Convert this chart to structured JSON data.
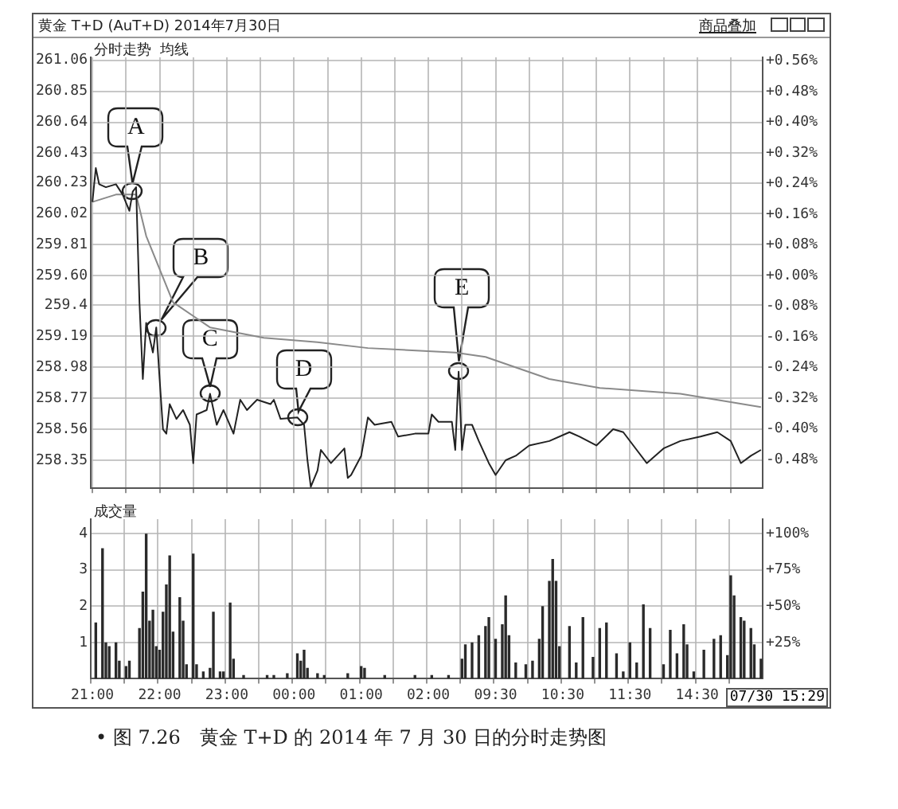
{
  "chart_data": [
    {
      "type": "line",
      "title": "黄金 T+D (AuT+D) 2014年7月30日",
      "subtitle": "分时走势  均线",
      "tick_labels": "y",
      "grid": true,
      "categories": [
        null,
        null,
        null,
        null,
        null,
        null,
        null,
        null,
        null,
        null,
        null,
        null,
        null,
        null,
        null,
        null,
        null,
        null,
        null,
        null,
        null,
        null,
        null,
        null,
        null,
        null,
        null,
        null,
        null,
        null,
        null,
        null,
        null,
        null,
        null,
        null,
        null,
        null,
        null,
        null,
        null,
        null,
        null,
        null,
        null,
        null,
        null,
        null,
        null,
        null,
        null,
        null,
        null,
        null,
        null,
        null,
        null,
        null,
        null,
        null,
        null,
        null,
        null,
        null,
        null,
        null,
        null,
        null,
        null,
        null,
        null,
        null,
        null,
        null,
        null,
        null,
        null,
        null,
        null,
        null,
        null,
        null,
        null,
        null,
        null,
        null,
        null,
        null,
        null,
        null,
        null,
        null,
        null,
        null,
        null,
        null,
        null,
        null,
        null,
        null,
        null,
        null,
        null,
        null,
        null,
        null,
        null,
        null,
        null,
        null,
        null,
        null,
        null,
        null,
        null,
        null,
        null,
        null,
        null,
        null,
        null,
        null,
        null,
        null,
        null,
        null,
        null,
        null,
        null,
        null,
        null,
        null,
        null,
        null,
        null,
        null,
        null,
        null,
        null,
        null,
        null,
        null,
        null,
        null,
        null,
        null,
        null,
        null,
        null,
        null,
        null,
        null,
        null,
        null,
        null,
        null,
        null,
        null,
        null,
        null,
        null,
        null,
        null,
        null,
        null,
        null,
        null,
        null,
        null,
        null,
        null,
        null,
        null,
        null,
        null,
        null,
        null,
        null,
        null,
        null,
        null,
        null,
        null,
        null,
        null,
        null,
        null,
        null,
        null,
        null,
        null,
        null,
        null,
        null,
        null,
        null,
        null,
        null,
        null,
        null
      ],
      "ylim": [
        258.16,
        261.08
      ],
      "yticks": [
        258.35,
        258.56,
        258.77,
        258.98,
        259.19,
        259.4,
        {
          "value": 259.6,
          "label": "259.60"
        },
        259.81,
        260.02,
        260.23,
        260.43,
        260.64,
        260.85,
        261.06
      ],
      "y2lim": [
        -0.555,
        0.57
      ],
      "y2ticks": [
        {
          "value": 0.56,
          "label": "+0.56%"
        },
        {
          "value": 0.48,
          "label": "+0.48%"
        },
        {
          "value": 0.4,
          "label": "+0.40%"
        },
        {
          "value": 0.32,
          "label": "+0.32%"
        },
        {
          "value": 0.24,
          "label": "+0.24%"
        },
        {
          "value": 0.16,
          "label": "+0.16%"
        },
        {
          "value": 0.08,
          "label": "+0.08%"
        },
        {
          "value": 0,
          "label": "+0.00%"
        },
        {
          "value": -0.08,
          "label": "-0.08%"
        },
        {
          "value": -0.16,
          "label": "-0.16%"
        },
        {
          "value": -0.24,
          "label": "-0.24%"
        },
        {
          "value": -0.32,
          "label": "-0.32%"
        },
        {
          "value": -0.4,
          "label": "-0.40%"
        },
        {
          "value": -0.48,
          "label": "-0.48%"
        }
      ],
      "series": [
        {
          "color": "#222222",
          "values": [
            260.1,
            260.33,
            260.22,
            null,
            260.2,
            null,
            null,
            260.22,
            null,
            260.15,
            null,
            260.04,
            260.17,
            260.2,
            259.42,
            258.9,
            259.28,
            259.18,
            259.08,
            259.25,
            258.9,
            258.56,
            258.53,
            258.73,
            null,
            258.63,
            null,
            258.69,
            null,
            258.59,
            258.33,
            258.66,
            null,
            null,
            258.69,
            258.8,
            null,
            258.59,
            null,
            258.69,
            null,
            null,
            258.53,
            null,
            258.76,
            null,
            258.69,
            null,
            null,
            258.76,
            null,
            null,
            null,
            258.73,
            258.76,
            null,
            258.63,
            null,
            null,
            null,
            null,
            258.64,
            null,
            258.59,
            258.35,
            258.17,
            null,
            258.28,
            258.42,
            null,
            null,
            258.33,
            null,
            null,
            null,
            258.43,
            258.23,
            258.25,
            null,
            null,
            258.38,
            null,
            258.64,
            null,
            258.59,
            null,
            null,
            null,
            null,
            258.61,
            null,
            258.51,
            null,
            null,
            null,
            null,
            258.53,
            null,
            null,
            null,
            258.53,
            258.66,
            null,
            258.61,
            null,
            null,
            null,
            258.61,
            258.42,
            258.95,
            258.42,
            258.59,
            null,
            258.59,
            null,
            258.48,
            null,
            null,
            258.33,
            null,
            258.25,
            null,
            null,
            258.35,
            null,
            null,
            258.38,
            null,
            null,
            null,
            258.45,
            null,
            null,
            null,
            null,
            null,
            258.48,
            null,
            null,
            null,
            null,
            null,
            258.54,
            null,
            null,
            258.51,
            null,
            null,
            null,
            null,
            258.45,
            null,
            null,
            null,
            null,
            258.56,
            null,
            null,
            258.54,
            null,
            null,
            null,
            258.42,
            null,
            null,
            258.33,
            null,
            null,
            null,
            null,
            258.43,
            null,
            null,
            null,
            null,
            258.48,
            null,
            null,
            null,
            null,
            null,
            258.51,
            null,
            null,
            null,
            null,
            258.54,
            null,
            null,
            null,
            258.48,
            null,
            null,
            258.33,
            null,
            null,
            258.38,
            null,
            null,
            258.42
          ]
        },
        {
          "color": "#8a8a8a",
          "values": [
            260.1,
            null,
            null,
            null,
            null,
            null,
            null,
            260.15,
            null,
            null,
            null,
            null,
            null,
            260.15,
            null,
            null,
            259.87,
            null,
            null,
            null,
            null,
            null,
            null,
            null,
            259.42,
            null,
            null,
            null,
            null,
            null,
            null,
            null,
            null,
            null,
            null,
            259.25,
            null,
            null,
            null,
            null,
            null,
            null,
            null,
            null,
            null,
            null,
            null,
            null,
            null,
            null,
            null,
            259.18,
            null,
            null,
            null,
            null,
            null,
            null,
            null,
            null,
            null,
            null,
            null,
            null,
            null,
            null,
            null,
            259.15,
            null,
            null,
            null,
            null,
            null,
            null,
            null,
            null,
            null,
            null,
            null,
            null,
            null,
            null,
            259.11,
            null,
            null,
            null,
            null,
            null,
            null,
            null,
            null,
            null,
            null,
            null,
            null,
            null,
            null,
            null,
            null,
            null,
            null,
            null,
            null,
            null,
            null,
            null,
            null,
            null,
            259.08,
            null,
            null,
            null,
            null,
            null,
            null,
            null,
            null,
            259.05,
            null,
            null,
            null,
            null,
            null,
            null,
            null,
            null,
            null,
            null,
            null,
            null,
            null,
            null,
            null,
            null,
            null,
            null,
            258.9,
            null,
            null,
            null,
            null,
            null,
            null,
            null,
            null,
            null,
            null,
            null,
            null,
            null,
            null,
            258.84,
            null,
            null,
            null,
            null,
            null,
            null,
            null,
            null,
            null,
            null,
            null,
            null,
            null,
            null,
            null,
            null,
            null,
            null,
            null,
            null,
            null,
            null,
            null,
            258.8,
            null,
            null,
            null,
            null,
            null,
            null,
            null,
            null,
            null,
            null,
            null,
            null,
            null,
            null,
            null,
            null,
            null,
            null,
            null,
            null,
            null,
            null,
            null,
            258.71
          ]
        }
      ],
      "annotations": [
        "商品叠加",
        {
          "text": "A",
          "y": 260.17
        },
        {
          "text": "B",
          "y": 259.25
        },
        {
          "text": "C",
          "y": 258.8
        },
        {
          "text": "D",
          "y": 258.64
        },
        {
          "text": "E",
          "y": 258.95
        }
      ]
    },
    {
      "type": "bar",
      "title": "成交量",
      "grid": true,
      "categories": [
        "21:00",
        null,
        null,
        null,
        null,
        null,
        null,
        null,
        null,
        null,
        null,
        null,
        null,
        null,
        null,
        null,
        null,
        null,
        null,
        null,
        "22:00",
        null,
        null,
        null,
        null,
        null,
        null,
        null,
        null,
        null,
        null,
        null,
        null,
        null,
        null,
        null,
        null,
        null,
        null,
        null,
        "23:00",
        null,
        null,
        null,
        null,
        null,
        null,
        null,
        null,
        null,
        null,
        null,
        null,
        null,
        null,
        null,
        null,
        null,
        null,
        null,
        "00:00",
        null,
        null,
        null,
        null,
        null,
        null,
        null,
        null,
        null,
        null,
        null,
        null,
        null,
        null,
        null,
        null,
        null,
        null,
        null,
        "01:00",
        null,
        null,
        null,
        null,
        null,
        null,
        null,
        null,
        null,
        null,
        null,
        null,
        null,
        null,
        null,
        null,
        null,
        null,
        null,
        "02:00",
        null,
        null,
        null,
        null,
        null,
        null,
        null,
        null,
        null,
        null,
        null,
        null,
        null,
        null,
        null,
        null,
        null,
        null,
        null,
        "09:30",
        null,
        null,
        null,
        null,
        null,
        null,
        null,
        null,
        null,
        null,
        null,
        null,
        null,
        null,
        null,
        null,
        null,
        null,
        null,
        "10:30",
        null,
        null,
        null,
        null,
        null,
        null,
        null,
        null,
        null,
        null,
        null,
        null,
        null,
        null,
        null,
        null,
        null,
        null,
        null,
        "11:30",
        null,
        null,
        null,
        null,
        null,
        null,
        null,
        null,
        null,
        null,
        null,
        null,
        null,
        null,
        null,
        null,
        null,
        null,
        null,
        "14:30",
        null,
        null,
        null,
        null,
        null,
        null,
        null,
        null,
        null,
        null,
        null,
        null,
        null,
        null,
        null,
        null,
        null,
        null,
        null
      ],
      "ylim": [
        0,
        4.4
      ],
      "yticks": [
        1,
        2,
        3,
        4
      ],
      "y2lim": [
        0,
        110
      ],
      "y2ticks": [
        {
          "value": 25,
          "label": "+25%"
        },
        {
          "value": 50,
          "label": "+50%"
        },
        {
          "value": 75,
          "label": "+75%"
        },
        {
          "value": 100,
          "label": "+100%"
        }
      ],
      "series": [
        {
          "color": "#2a2a2a",
          "values": [
            null,
            1.55,
            null,
            3.6,
            1.0,
            0.9,
            null,
            1.0,
            0.5,
            null,
            0.35,
            0.5,
            null,
            null,
            1.4,
            2.4,
            4.0,
            1.6,
            1.9,
            0.9,
            0.8,
            1.85,
            2.6,
            3.4,
            1.3,
            null,
            2.25,
            1.6,
            0.4,
            null,
            3.45,
            0.4,
            null,
            0.2,
            null,
            0.3,
            1.85,
            null,
            0.2,
            0.2,
            null,
            2.1,
            0.55,
            null,
            null,
            0.1,
            null,
            null,
            null,
            null,
            null,
            null,
            0.1,
            null,
            0.1,
            null,
            null,
            null,
            0.15,
            null,
            null,
            0.7,
            0.5,
            0.8,
            0.3,
            null,
            null,
            0.15,
            null,
            0.1,
            null,
            null,
            null,
            null,
            null,
            null,
            0.15,
            null,
            null,
            null,
            0.35,
            0.3,
            null,
            null,
            null,
            null,
            null,
            0.1,
            null,
            null,
            null,
            null,
            null,
            null,
            null,
            null,
            0.1,
            null,
            null,
            null,
            null,
            0.1,
            null,
            null,
            null,
            null,
            0.1,
            null,
            null,
            null,
            0.55,
            0.95,
            null,
            1.0,
            null,
            1.2,
            null,
            1.45,
            1.7,
            null,
            1.1,
            null,
            1.5,
            2.3,
            1.2,
            null,
            0.45,
            null,
            null,
            0.4,
            null,
            0.5,
            null,
            1.1,
            2.0,
            null,
            2.7,
            3.3,
            2.7,
            0.9,
            null,
            null,
            1.45,
            null,
            0.45,
            null,
            1.7,
            null,
            null,
            0.6,
            null,
            1.4,
            null,
            1.55,
            null,
            null,
            0.7,
            null,
            0.2,
            null,
            1.0,
            null,
            0.45,
            null,
            2.05,
            null,
            1.4,
            null,
            null,
            null,
            0.4,
            null,
            1.35,
            null,
            0.7,
            null,
            1.5,
            0.95,
            null,
            0.2,
            null,
            null,
            0.8,
            null,
            null,
            1.1,
            null,
            1.2,
            null,
            0.65,
            2.85,
            2.3,
            null,
            1.7,
            1.6,
            null,
            1.4,
            0.95,
            null,
            0.55
          ]
        }
      ],
      "annotations": [
        "07/30 15:29",
        "• 图 7.26　黄金 T+D 的 2014 年 7 月 30 日的分时走势图"
      ]
    }
  ]
}
